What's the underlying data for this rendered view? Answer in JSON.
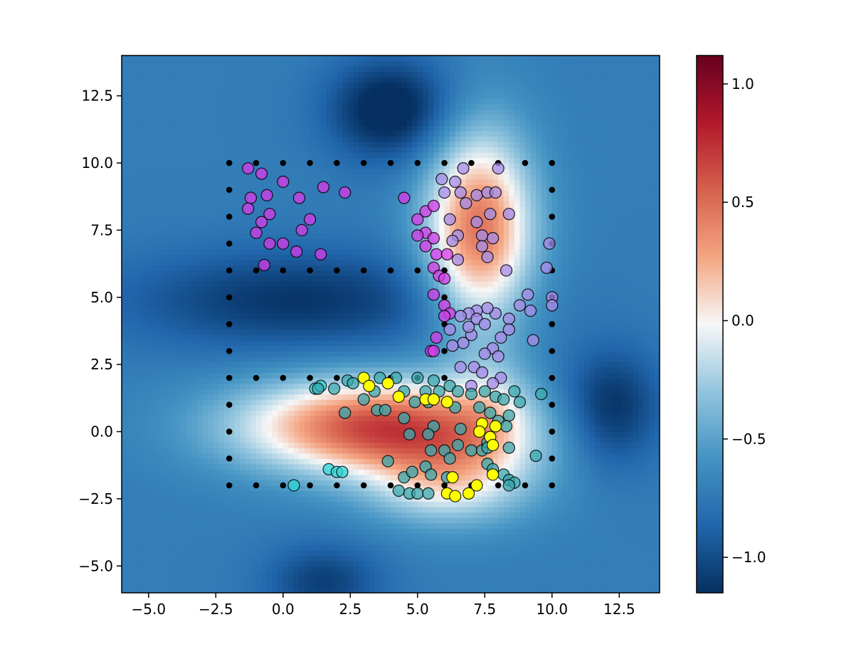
{
  "chart_data": {
    "type": "heatmap",
    "title": "",
    "xlabel": "",
    "ylabel": "",
    "xlim": [
      -6,
      14
    ],
    "ylim": [
      -6,
      14
    ],
    "x_ticks": [
      -5.0,
      -2.5,
      0.0,
      2.5,
      5.0,
      7.5,
      10.0,
      12.5
    ],
    "x_tick_labels": [
      "−5.0",
      "−2.5",
      "0.0",
      "2.5",
      "5.0",
      "7.5",
      "10.0",
      "12.5"
    ],
    "y_ticks": [
      -5.0,
      -2.5,
      0.0,
      2.5,
      5.0,
      7.5,
      10.0,
      12.5
    ],
    "y_tick_labels": [
      "−5.0",
      "−2.5",
      "0.0",
      "2.5",
      "5.0",
      "7.5",
      "10.0",
      "12.5"
    ],
    "colormap": "RdBu_r",
    "colors": {
      "low": "#053061",
      "mid": "#f7f7f7",
      "high": "#67001f",
      "dot": "#000000",
      "magenta": "#d63be8",
      "lavender": "#a58be8",
      "cyan": "#2fd6d6",
      "teal": "#3aa8ad",
      "yellow": "#ffff00"
    },
    "colorbar": {
      "range": [
        -1.15,
        1.12
      ],
      "ticks": [
        1.0,
        0.5,
        0.0,
        -0.5,
        -1.0
      ],
      "tick_labels": [
        "1.0",
        "0.5",
        "0.0",
        "−0.5",
        "−1.0"
      ]
    },
    "field_bumps": [
      {
        "x": 3.5,
        "y": 0.2,
        "sx": 3.6,
        "sy": 1.25,
        "a": 1.35
      },
      {
        "x": 6.5,
        "y": -1.6,
        "sx": 2.2,
        "sy": 1.3,
        "a": 0.55
      },
      {
        "x": 7.3,
        "y": 7.5,
        "sx": 1.4,
        "sy": 2.6,
        "a": 1.2
      },
      {
        "x": 7.7,
        "y": 1.2,
        "sx": 1.0,
        "sy": 1.3,
        "a": 0.25
      },
      {
        "x": 0.5,
        "y": 4.9,
        "sx": 4.5,
        "sy": 1.3,
        "a": -0.4
      },
      {
        "x": 4.0,
        "y": 12.0,
        "sx": 1.6,
        "sy": 1.3,
        "a": -0.55
      },
      {
        "x": 12.2,
        "y": 0.9,
        "sx": 1.3,
        "sy": 1.5,
        "a": -0.45
      },
      {
        "x": 1.5,
        "y": -5.6,
        "sx": 1.5,
        "sy": 1.0,
        "a": -0.35
      },
      {
        "x": 5.5,
        "y": -2.3,
        "sx": 1.8,
        "sy": 0.8,
        "a": 0.15
      }
    ],
    "field_base": -0.72,
    "grid_points": [
      [
        -2,
        10
      ],
      [
        -1,
        10
      ],
      [
        0,
        10
      ],
      [
        1,
        10
      ],
      [
        2,
        10
      ],
      [
        3,
        10
      ],
      [
        4,
        10
      ],
      [
        5,
        10
      ],
      [
        6,
        10
      ],
      [
        7,
        10
      ],
      [
        8,
        10
      ],
      [
        9,
        10
      ],
      [
        10,
        10
      ],
      [
        -2,
        9
      ],
      [
        10,
        9
      ],
      [
        -2,
        8
      ],
      [
        10,
        8
      ],
      [
        -2,
        7
      ],
      [
        10,
        7
      ],
      [
        -2,
        6
      ],
      [
        -1,
        6
      ],
      [
        0,
        6
      ],
      [
        1,
        6
      ],
      [
        2,
        6
      ],
      [
        3,
        6
      ],
      [
        4,
        6
      ],
      [
        5,
        6
      ],
      [
        6,
        6
      ],
      [
        10,
        6
      ],
      [
        -2,
        5
      ],
      [
        6,
        5
      ],
      [
        10,
        5
      ],
      [
        -2,
        4
      ],
      [
        6,
        4
      ],
      [
        10,
        4
      ],
      [
        -2,
        3
      ],
      [
        6,
        3
      ],
      [
        10,
        3
      ],
      [
        -2,
        2
      ],
      [
        -1,
        2
      ],
      [
        0,
        2
      ],
      [
        1,
        2
      ],
      [
        2,
        2
      ],
      [
        3,
        2
      ],
      [
        4,
        2
      ],
      [
        5,
        2
      ],
      [
        6,
        2
      ],
      [
        10,
        2
      ],
      [
        -2,
        1
      ],
      [
        10,
        1
      ],
      [
        -2,
        0
      ],
      [
        10,
        0
      ],
      [
        -2,
        -1
      ],
      [
        10,
        -1
      ],
      [
        -2,
        -2
      ],
      [
        -1,
        -2
      ],
      [
        0,
        -2
      ],
      [
        1,
        -2
      ],
      [
        2,
        -2
      ],
      [
        3,
        -2
      ],
      [
        4,
        -2
      ],
      [
        5,
        -2
      ],
      [
        6,
        -2
      ],
      [
        7,
        -2
      ],
      [
        8,
        -2
      ],
      [
        9,
        -2
      ],
      [
        10,
        -2
      ]
    ],
    "series": [
      {
        "name": "magenta",
        "color": "#d63be8",
        "points": [
          [
            -1.3,
            9.8
          ],
          [
            -0.8,
            9.6
          ],
          [
            0,
            9.3
          ],
          [
            -1.2,
            8.7
          ],
          [
            -0.6,
            8.8
          ],
          [
            -1.3,
            8.3
          ],
          [
            -0.5,
            8.1
          ],
          [
            -0.8,
            7.8
          ],
          [
            -1.0,
            7.4
          ],
          [
            -0.5,
            7.0
          ],
          [
            0,
            7.0
          ],
          [
            -0.7,
            6.2
          ],
          [
            0.5,
            6.7
          ],
          [
            1.4,
            6.6
          ],
          [
            0.6,
            8.7
          ],
          [
            1.0,
            7.9
          ],
          [
            0.7,
            7.5
          ],
          [
            1.5,
            9.1
          ],
          [
            2.3,
            8.9
          ],
          [
            4.5,
            8.7
          ],
          [
            5.3,
            8.2
          ],
          [
            5.6,
            8.4
          ],
          [
            5.0,
            7.9
          ],
          [
            5.3,
            7.4
          ],
          [
            5.0,
            7.3
          ],
          [
            5.6,
            7.2
          ],
          [
            5.3,
            6.9
          ],
          [
            5.7,
            6.6
          ],
          [
            6.1,
            6.6
          ],
          [
            5.6,
            6.1
          ],
          [
            5.8,
            5.8
          ],
          [
            6.0,
            5.7
          ],
          [
            5.6,
            5.1
          ],
          [
            6.0,
            4.7
          ],
          [
            6.2,
            4.4
          ],
          [
            6.0,
            4.3
          ],
          [
            5.7,
            3.5
          ],
          [
            5.5,
            3.0
          ],
          [
            5.6,
            3.0
          ]
        ]
      },
      {
        "name": "lavender",
        "color": "#a58be8",
        "points": [
          [
            6.7,
            9.8
          ],
          [
            8.0,
            9.8
          ],
          [
            5.9,
            9.4
          ],
          [
            6.4,
            9.3
          ],
          [
            6.0,
            8.9
          ],
          [
            6.6,
            8.9
          ],
          [
            7.2,
            8.8
          ],
          [
            7.6,
            8.9
          ],
          [
            7.9,
            8.9
          ],
          [
            6.8,
            8.5
          ],
          [
            7.7,
            8.1
          ],
          [
            8.4,
            8.1
          ],
          [
            6.2,
            7.9
          ],
          [
            7.2,
            7.8
          ],
          [
            6.5,
            7.3
          ],
          [
            7.4,
            7.3
          ],
          [
            7.8,
            7.2
          ],
          [
            6.3,
            7.1
          ],
          [
            7.4,
            6.9
          ],
          [
            7.6,
            6.5
          ],
          [
            6.5,
            6.4
          ],
          [
            8.3,
            6.0
          ],
          [
            9.9,
            7.0
          ],
          [
            9.8,
            6.1
          ],
          [
            9.1,
            5.1
          ],
          [
            10,
            5.0
          ],
          [
            8.8,
            4.7
          ],
          [
            9.2,
            4.5
          ],
          [
            10,
            4.7
          ],
          [
            8.4,
            4.2
          ],
          [
            7.9,
            4.4
          ],
          [
            7.6,
            4.6
          ],
          [
            7.2,
            4.5
          ],
          [
            6.9,
            4.4
          ],
          [
            6.6,
            4.3
          ],
          [
            7.2,
            4.2
          ],
          [
            7.5,
            4.0
          ],
          [
            8.4,
            3.8
          ],
          [
            8.1,
            3.5
          ],
          [
            7.8,
            3.1
          ],
          [
            8.0,
            2.8
          ],
          [
            7.5,
            2.9
          ],
          [
            7.1,
            2.4
          ],
          [
            6.6,
            2.4
          ],
          [
            7.4,
            2.2
          ],
          [
            8.1,
            2.0
          ],
          [
            7.8,
            1.8
          ],
          [
            9.3,
            3.4
          ],
          [
            6.7,
            3.3
          ],
          [
            6.3,
            3.2
          ],
          [
            7.0,
            1.7
          ],
          [
            6.2,
            3.8
          ],
          [
            7.0,
            3.6
          ],
          [
            6.9,
            3.9
          ]
        ]
      },
      {
        "name": "cyan",
        "color": "#2fd6d6",
        "points": [
          [
            1.2,
            1.6
          ],
          [
            1.4,
            1.7
          ],
          [
            1.7,
            -1.4
          ],
          [
            2.0,
            -1.5
          ],
          [
            2.2,
            -1.5
          ],
          [
            0.4,
            -2.0
          ]
        ]
      },
      {
        "name": "teal",
        "color": "#3aa8ad",
        "points": [
          [
            1.3,
            1.6
          ],
          [
            1.9,
            1.6
          ],
          [
            2.4,
            1.9
          ],
          [
            2.6,
            1.8
          ],
          [
            3.6,
            2.0
          ],
          [
            4.2,
            2.0
          ],
          [
            5.0,
            2.0
          ],
          [
            5.6,
            1.9
          ],
          [
            6.2,
            1.7
          ],
          [
            3.4,
            1.5
          ],
          [
            4.5,
            1.5
          ],
          [
            5.3,
            1.5
          ],
          [
            5.8,
            1.5
          ],
          [
            6.5,
            1.5
          ],
          [
            7.0,
            1.4
          ],
          [
            4.9,
            1.1
          ],
          [
            5.4,
            1.1
          ],
          [
            3.0,
            1.2
          ],
          [
            6.4,
            0.9
          ],
          [
            3.5,
            0.8
          ],
          [
            3.8,
            0.8
          ],
          [
            2.3,
            0.7
          ],
          [
            4.5,
            0.5
          ],
          [
            5.6,
            0.2
          ],
          [
            6.6,
            0.1
          ],
          [
            4.7,
            -0.1
          ],
          [
            5.4,
            -0.1
          ],
          [
            6.5,
            -0.5
          ],
          [
            8.4,
            -0.6
          ],
          [
            5.5,
            -0.7
          ],
          [
            6.0,
            -0.7
          ],
          [
            7.0,
            -0.7
          ],
          [
            6.2,
            -1.0
          ],
          [
            7.4,
            -0.7
          ],
          [
            7.6,
            -0.4
          ],
          [
            3.9,
            -1.1
          ],
          [
            5.3,
            -1.3
          ],
          [
            7.6,
            -1.2
          ],
          [
            4.5,
            -1.7
          ],
          [
            4.8,
            -1.5
          ],
          [
            5.5,
            -1.6
          ],
          [
            6.1,
            -1.7
          ],
          [
            8.2,
            -1.6
          ],
          [
            8.4,
            -1.8
          ],
          [
            4.3,
            -2.2
          ],
          [
            4.7,
            -2.3
          ],
          [
            5.0,
            -2.3
          ],
          [
            5.4,
            -2.3
          ],
          [
            8.6,
            -1.9
          ],
          [
            8.4,
            -2.0
          ],
          [
            7.8,
            -1.4
          ],
          [
            7.7,
            0.7
          ],
          [
            8.0,
            0.4
          ],
          [
            8.4,
            0.6
          ],
          [
            8.3,
            0.2
          ],
          [
            7.3,
            0.9
          ],
          [
            7.5,
            1.5
          ],
          [
            7.9,
            1.3
          ],
          [
            8.2,
            1.2
          ],
          [
            8.6,
            1.5
          ],
          [
            8.8,
            1.1
          ],
          [
            9.6,
            1.4
          ],
          [
            9.4,
            -0.9
          ],
          [
            7.6,
            -0.6
          ]
        ]
      },
      {
        "name": "yellow",
        "color": "#ffff00",
        "points": [
          [
            3.0,
            2.0
          ],
          [
            3.2,
            1.7
          ],
          [
            3.9,
            1.8
          ],
          [
            4.3,
            1.3
          ],
          [
            5.3,
            1.2
          ],
          [
            5.6,
            1.2
          ],
          [
            6.1,
            1.1
          ],
          [
            7.4,
            0.3
          ],
          [
            7.9,
            0.2
          ],
          [
            7.3,
            0.0
          ],
          [
            7.7,
            -0.2
          ],
          [
            7.8,
            -0.5
          ],
          [
            6.3,
            -1.7
          ],
          [
            6.1,
            -2.3
          ],
          [
            6.4,
            -2.4
          ],
          [
            6.9,
            -2.3
          ],
          [
            7.2,
            -2.0
          ],
          [
            7.8,
            -1.6
          ]
        ]
      }
    ]
  }
}
